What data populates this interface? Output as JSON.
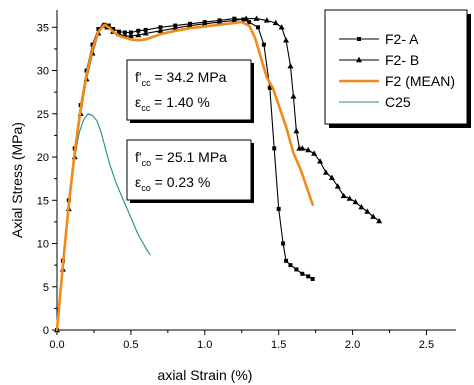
{
  "chart_data": {
    "type": "line",
    "xlabel": "axial Strain (%)",
    "ylabel": "Axial Stress (MPa)",
    "xlim": [
      0,
      2.7
    ],
    "ylim": [
      0,
      37
    ],
    "xticks": [
      "0.0",
      "0.5",
      "1.0",
      "1.5",
      "2.0",
      "2.5"
    ],
    "xtick_values": [
      0,
      0.5,
      1.0,
      1.5,
      2.0,
      2.5
    ],
    "yticks": [
      "0",
      "5",
      "10",
      "15",
      "20",
      "25",
      "30",
      "35"
    ],
    "ytick_values": [
      0,
      5,
      10,
      15,
      20,
      25,
      30,
      35
    ],
    "grid": false,
    "legend_position": "top-right",
    "series": [
      {
        "name": "F2- A",
        "color": "#000000",
        "marker": "square",
        "x": [
          0,
          0.04,
          0.08,
          0.12,
          0.16,
          0.2,
          0.24,
          0.28,
          0.32,
          0.35,
          0.38,
          0.42,
          0.46,
          0.5,
          0.55,
          0.6,
          0.7,
          0.8,
          0.9,
          1.0,
          1.1,
          1.2,
          1.26,
          1.3,
          1.36,
          1.4,
          1.44,
          1.47,
          1.5,
          1.53,
          1.55,
          1.58,
          1.62,
          1.66,
          1.7,
          1.73
        ],
        "y": [
          0,
          8,
          15,
          21,
          26,
          30,
          33,
          34.8,
          35.3,
          35.2,
          34.8,
          34.5,
          34.4,
          34.4,
          34.6,
          34.7,
          35.0,
          35.2,
          35.4,
          35.6,
          35.8,
          36.0,
          35.9,
          35.6,
          35.0,
          33.0,
          28.0,
          21.0,
          14.0,
          10.0,
          8.0,
          7.5,
          7.0,
          6.5,
          6.2,
          5.9
        ]
      },
      {
        "name": "F2- B",
        "color": "#000000",
        "marker": "triangle",
        "x": [
          0,
          0.04,
          0.08,
          0.12,
          0.16,
          0.2,
          0.24,
          0.28,
          0.31,
          0.34,
          0.38,
          0.42,
          0.46,
          0.5,
          0.55,
          0.6,
          0.7,
          0.8,
          0.9,
          1.0,
          1.1,
          1.2,
          1.28,
          1.35,
          1.42,
          1.48,
          1.52,
          1.55,
          1.58,
          1.6,
          1.62,
          1.64,
          1.66,
          1.7,
          1.74,
          1.78,
          1.82,
          1.86,
          1.9,
          1.94,
          1.98,
          2.02,
          2.06,
          2.1,
          2.14,
          2.18
        ],
        "y": [
          0,
          7,
          14,
          20,
          25,
          29,
          32,
          34.3,
          35.2,
          35.0,
          34.5,
          34.2,
          34.0,
          34.0,
          34.1,
          34.3,
          34.6,
          34.9,
          35.2,
          35.4,
          35.6,
          35.8,
          36.0,
          36.0,
          35.8,
          35.5,
          35.0,
          33.5,
          30.5,
          27.0,
          23.0,
          21.0,
          21.0,
          20.8,
          20.4,
          19.5,
          18.2,
          17.6,
          16.6,
          15.5,
          15.2,
          14.8,
          14.2,
          13.7,
          13.1,
          12.6
        ]
      },
      {
        "name": "F2 (MEAN)",
        "color": "#f28a1a",
        "marker": "none",
        "x": [
          0,
          0.04,
          0.08,
          0.12,
          0.16,
          0.2,
          0.24,
          0.28,
          0.32,
          0.35,
          0.38,
          0.42,
          0.46,
          0.5,
          0.55,
          0.6,
          0.65,
          0.7,
          0.8,
          0.9,
          1.0,
          1.1,
          1.2,
          1.25,
          1.3,
          1.34,
          1.38,
          1.42,
          1.46,
          1.5,
          1.55,
          1.6,
          1.65,
          1.7,
          1.73
        ],
        "y": [
          0,
          7.5,
          14.5,
          20.5,
          25.5,
          29.5,
          32.5,
          34.5,
          35.3,
          35.0,
          34.5,
          34.0,
          33.8,
          33.6,
          33.5,
          33.6,
          33.9,
          34.2,
          34.6,
          34.9,
          35.1,
          35.3,
          35.5,
          35.6,
          35.2,
          33.8,
          31.5,
          29.2,
          28.0,
          26.0,
          23.5,
          20.5,
          18.5,
          16.0,
          14.5
        ]
      },
      {
        "name": "C25",
        "color": "#1f8f86",
        "marker": "none",
        "x": [
          0,
          0.03,
          0.06,
          0.09,
          0.12,
          0.15,
          0.18,
          0.21,
          0.24,
          0.27,
          0.3,
          0.33,
          0.36,
          0.4,
          0.45,
          0.5,
          0.55,
          0.6,
          0.63
        ],
        "y": [
          0,
          6,
          11.5,
          16,
          20,
          22.8,
          24.3,
          25.0,
          24.8,
          24.2,
          22.8,
          20.8,
          19.0,
          17.0,
          15.0,
          13.0,
          11.0,
          9.5,
          8.7
        ]
      }
    ],
    "annotations": [
      {
        "lines": [
          {
            "f": "f'",
            "sub": "cc",
            "rest": " = 34.2 MPa"
          },
          {
            "f": "ε",
            "sub": "cc",
            "rest": " = 1.40 %"
          }
        ]
      },
      {
        "lines": [
          {
            "f": "f'",
            "sub": "co",
            "rest": " = 25.1 MPa"
          },
          {
            "f": "ε",
            "sub": "co",
            "rest": " = 0.23 %"
          }
        ]
      }
    ]
  }
}
